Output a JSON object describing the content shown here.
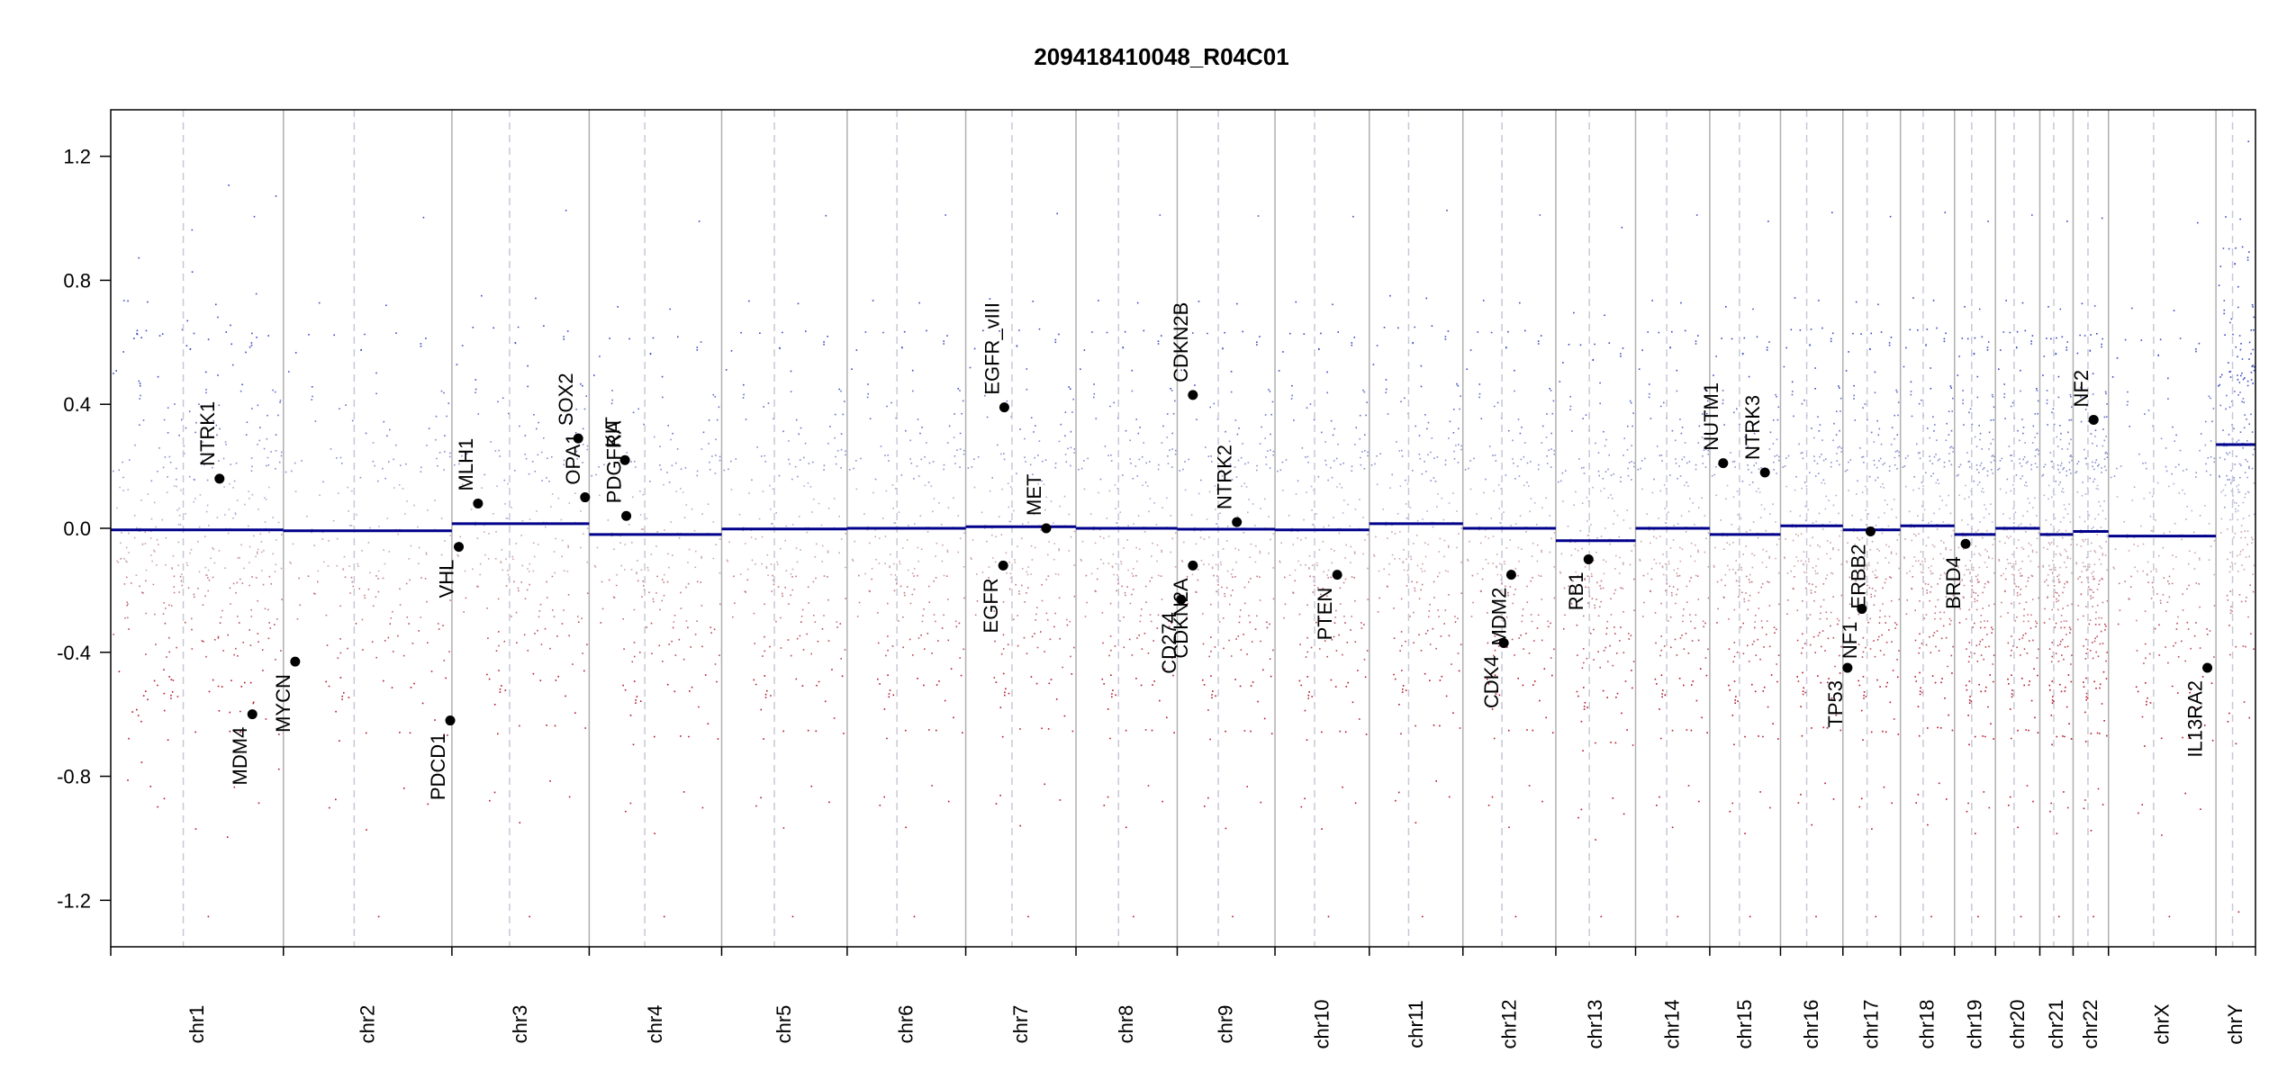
{
  "chart_data": {
    "type": "scatter",
    "title": "209418410048_R04C01",
    "xlabel": "",
    "ylabel": "",
    "ylim": [
      -1.35,
      1.35
    ],
    "y_ticks": [
      "1.2",
      "0.8",
      "0.4",
      "0.0",
      "-0.4",
      "-0.8",
      "-1.2"
    ],
    "y_tick_values": [
      1.2,
      0.8,
      0.4,
      0.0,
      -0.4,
      -0.8,
      -1.2
    ],
    "colors": {
      "gain": "#3b4cc0",
      "loss": "#b2182b",
      "segment": "#00008b",
      "marker": "#000000",
      "separator": "#b0b0b0"
    },
    "chromosomes": [
      {
        "name": "chr1",
        "size": 249,
        "segment": -0.005
      },
      {
        "name": "chr2",
        "size": 243,
        "segment": -0.008
      },
      {
        "name": "chr3",
        "size": 198,
        "segment": 0.015
      },
      {
        "name": "chr4",
        "size": 191,
        "segment": -0.02
      },
      {
        "name": "chr5",
        "size": 181,
        "segment": -0.002
      },
      {
        "name": "chr6",
        "size": 171,
        "segment": 0.0
      },
      {
        "name": "chr7",
        "size": 159,
        "segment": 0.005
      },
      {
        "name": "chr8",
        "size": 146,
        "segment": 0.0
      },
      {
        "name": "chr9",
        "size": 141,
        "segment": -0.003
      },
      {
        "name": "chr10",
        "size": 136,
        "segment": -0.005
      },
      {
        "name": "chr11",
        "size": 135,
        "segment": 0.015
      },
      {
        "name": "chr12",
        "size": 134,
        "segment": 0.0
      },
      {
        "name": "chr13",
        "size": 115,
        "segment": -0.04
      },
      {
        "name": "chr14",
        "size": 107,
        "segment": 0.0
      },
      {
        "name": "chr15",
        "size": 102,
        "segment": -0.02
      },
      {
        "name": "chr16",
        "size": 90,
        "segment": 0.008
      },
      {
        "name": "chr17",
        "size": 83,
        "segment": -0.005
      },
      {
        "name": "chr18",
        "size": 78,
        "segment": 0.008
      },
      {
        "name": "chr19",
        "size": 59,
        "segment": -0.02
      },
      {
        "name": "chr20",
        "size": 64,
        "segment": 0.0
      },
      {
        "name": "chr21",
        "size": 48,
        "segment": -0.02
      },
      {
        "name": "chr22",
        "size": 51,
        "segment": -0.01
      },
      {
        "name": "chrX",
        "size": 155,
        "segment": -0.025
      },
      {
        "name": "chrY",
        "size": 57,
        "segment": 0.27
      }
    ],
    "genes": [
      {
        "name": "NTRK1",
        "chr": "chr1",
        "pos": 0.63,
        "value": 0.16
      },
      {
        "name": "MDM4",
        "chr": "chr1",
        "pos": 0.82,
        "value": -0.6
      },
      {
        "name": "MYCN",
        "chr": "chr2",
        "pos": 0.07,
        "value": -0.43
      },
      {
        "name": "PDCD1",
        "chr": "chr2",
        "pos": 0.99,
        "value": -0.62
      },
      {
        "name": "VHL",
        "chr": "chr3",
        "pos": 0.05,
        "value": -0.06
      },
      {
        "name": "MLH1",
        "chr": "chr3",
        "pos": 0.19,
        "value": 0.08
      },
      {
        "name": "SOX2",
        "chr": "chr3",
        "pos": 0.92,
        "value": 0.29
      },
      {
        "name": "OPA1",
        "chr": "chr3",
        "pos": 0.97,
        "value": 0.1
      },
      {
        "name": "KIT",
        "chr": "chr4",
        "pos": 0.27,
        "value": 0.22
      },
      {
        "name": "PDGFRA",
        "chr": "chr4",
        "pos": 0.28,
        "value": 0.04
      },
      {
        "name": "EGFR_vIII",
        "chr": "chr7",
        "pos": 0.35,
        "value": 0.39
      },
      {
        "name": "EGFR",
        "chr": "chr7",
        "pos": 0.34,
        "value": -0.12
      },
      {
        "name": "MET",
        "chr": "chr7",
        "pos": 0.73,
        "value": 0.0
      },
      {
        "name": "CDKN2B",
        "chr": "chr9",
        "pos": 0.16,
        "value": 0.43
      },
      {
        "name": "CDKN2A",
        "chr": "chr9",
        "pos": 0.16,
        "value": -0.12
      },
      {
        "name": "CD274",
        "chr": "chr9",
        "pos": 0.04,
        "value": -0.23
      },
      {
        "name": "NTRK2",
        "chr": "chr9",
        "pos": 0.61,
        "value": 0.02
      },
      {
        "name": "PTEN",
        "chr": "chr10",
        "pos": 0.66,
        "value": -0.15
      },
      {
        "name": "CDK4",
        "chr": "chr12",
        "pos": 0.44,
        "value": -0.37
      },
      {
        "name": "MDM2",
        "chr": "chr12",
        "pos": 0.52,
        "value": -0.15
      },
      {
        "name": "RB1",
        "chr": "chr13",
        "pos": 0.41,
        "value": -0.1
      },
      {
        "name": "NUTM1",
        "chr": "chr15",
        "pos": 0.19,
        "value": 0.21
      },
      {
        "name": "NTRK3",
        "chr": "chr15",
        "pos": 0.78,
        "value": 0.18
      },
      {
        "name": "TP53",
        "chr": "chr17",
        "pos": 0.08,
        "value": -0.45
      },
      {
        "name": "NF1",
        "chr": "chr17",
        "pos": 0.33,
        "value": -0.26
      },
      {
        "name": "ERBB2",
        "chr": "chr17",
        "pos": 0.48,
        "value": -0.01
      },
      {
        "name": "BRD4",
        "chr": "chr19",
        "pos": 0.27,
        "value": -0.05
      },
      {
        "name": "NF2",
        "chr": "chr22",
        "pos": 0.58,
        "value": 0.35
      },
      {
        "name": "IL13RA2",
        "chr": "chrX",
        "pos": 0.92,
        "value": -0.45
      }
    ]
  }
}
